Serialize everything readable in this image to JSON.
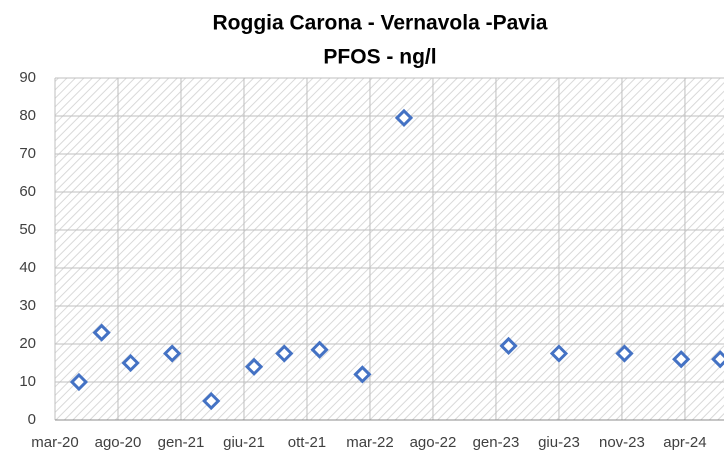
{
  "chart_data": {
    "type": "scatter",
    "title": "Roggia Carona - Vernavola -Pavia",
    "subtitle": "PFOS - ng/l",
    "x": [
      1.9,
      3.7,
      6.0,
      9.3,
      12.4,
      15.8,
      18.2,
      21.0,
      24.4,
      27.7,
      36.0,
      40.0,
      45.2,
      49.7,
      52.8
    ],
    "values": [
      10,
      23,
      15,
      17.5,
      5,
      14,
      17.5,
      18.5,
      12,
      79.5,
      19.5,
      17.5,
      17.5,
      16,
      16
    ],
    "color": "#4472c4",
    "xlim": [
      0,
      53.1
    ],
    "xticks": [
      {
        "value": 0,
        "label": "mar-20"
      },
      {
        "value": 5,
        "label": "ago-20"
      },
      {
        "value": 10,
        "label": "gen-21"
      },
      {
        "value": 15,
        "label": "giu-21"
      },
      {
        "value": 20,
        "label": "ott-21"
      },
      {
        "value": 25,
        "label": "mar-22"
      },
      {
        "value": 30,
        "label": "ago-22"
      },
      {
        "value": 35,
        "label": "gen-23"
      },
      {
        "value": 40,
        "label": "giu-23"
      },
      {
        "value": 45,
        "label": "nov-23"
      },
      {
        "value": 50,
        "label": "apr-24"
      }
    ],
    "ylim": [
      0,
      90
    ],
    "yticks": [
      0,
      10,
      20,
      30,
      40,
      50,
      60,
      70,
      80,
      90
    ],
    "grid": true
  }
}
